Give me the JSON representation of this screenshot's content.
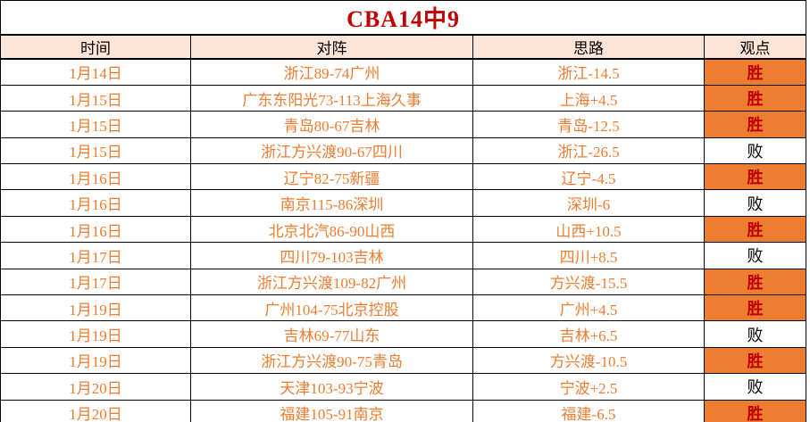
{
  "title": "CBA14中9",
  "table": {
    "headers": [
      "时间",
      "对阵",
      "思路",
      "观点"
    ],
    "verdict_labels": {
      "win": "胜",
      "loss": "败"
    },
    "rows": [
      {
        "date": "1月14日",
        "match": "浙江89-74广州",
        "idea": "浙江-14.5",
        "verdict": "胜",
        "win": true
      },
      {
        "date": "1月15日",
        "match": "广东东阳光73-113上海久事",
        "idea": "上海+4.5",
        "verdict": "胜",
        "win": true
      },
      {
        "date": "1月15日",
        "match": "青岛80-67吉林",
        "idea": "青岛-12.5",
        "verdict": "胜",
        "win": true
      },
      {
        "date": "1月15日",
        "match": "浙江方兴渡90-67四川",
        "idea": "浙江-26.5",
        "verdict": "败",
        "win": false
      },
      {
        "date": "1月16日",
        "match": "辽宁82-75新疆",
        "idea": "辽宁-4.5",
        "verdict": "胜",
        "win": true
      },
      {
        "date": "1月16日",
        "match": "南京115-86深圳",
        "idea": "深圳-6",
        "verdict": "败",
        "win": false
      },
      {
        "date": "1月16日",
        "match": "北京北汽86-90山西",
        "idea": "山西+10.5",
        "verdict": "胜",
        "win": true
      },
      {
        "date": "1月17日",
        "match": "四川79-103吉林",
        "idea": "四川+8.5",
        "verdict": "败",
        "win": false
      },
      {
        "date": "1月17日",
        "match": "浙江方兴渡109-82广州",
        "idea": "方兴渡-15.5",
        "verdict": "胜",
        "win": true
      },
      {
        "date": "1月19日",
        "match": "广州104-75北京控股",
        "idea": "广州+4.5",
        "verdict": "胜",
        "win": true
      },
      {
        "date": "1月19日",
        "match": "吉林69-77山东",
        "idea": "吉林+6.5",
        "verdict": "败",
        "win": false
      },
      {
        "date": "1月19日",
        "match": "浙江方兴渡90-75青岛",
        "idea": "方兴渡-10.5",
        "verdict": "胜",
        "win": true
      },
      {
        "date": "1月20日",
        "match": "天津103-93宁波",
        "idea": "宁波+2.5",
        "verdict": "败",
        "win": false
      },
      {
        "date": "1月20日",
        "match": "福建105-91南京",
        "idea": "福建-6.5",
        "verdict": "胜",
        "win": true
      }
    ]
  },
  "colors": {
    "header_bg": "#fce4d6",
    "win_bg": "#ed7d31",
    "win_text": "#c00000",
    "loss_text": "#000000",
    "body_text": "#ed7d31",
    "title_text": "#c00000",
    "border": "#000000"
  }
}
